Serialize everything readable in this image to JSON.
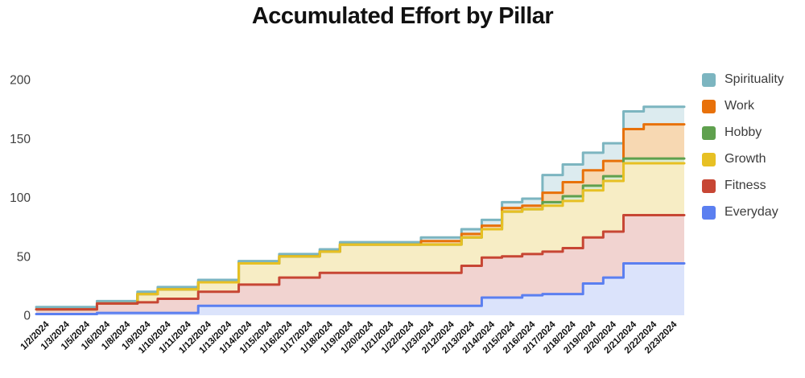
{
  "header": {
    "title": "Accumulated Effort by Pillar"
  },
  "chart_data": {
    "type": "area",
    "variant": "stepped-stacked-area",
    "title": "Accumulated Effort by Pillar",
    "xlabel": "",
    "ylabel": "",
    "ylim": [
      0,
      200
    ],
    "y_ticks": [
      0,
      50,
      100,
      150,
      200
    ],
    "grid": false,
    "legend_position": "right",
    "legend_order_top_to_bottom": [
      "Spirituality",
      "Work",
      "Hobby",
      "Growth",
      "Fitness",
      "Everyday"
    ],
    "categories": [
      "1/2/2024",
      "1/3/2024",
      "1/5/2024",
      "1/6/2024",
      "1/8/2024",
      "1/9/2024",
      "1/10/2024",
      "1/11/2024",
      "1/12/2024",
      "1/13/2024",
      "1/14/2024",
      "1/15/2024",
      "1/16/2024",
      "1/17/2024",
      "1/18/2024",
      "1/19/2024",
      "1/20/2024",
      "1/21/2024",
      "1/22/2024",
      "1/23/2024",
      "2/12/2024",
      "2/13/2024",
      "2/14/2024",
      "2/15/2024",
      "2/16/2024",
      "2/17/2024",
      "2/18/2024",
      "2/19/2024",
      "2/20/2024",
      "2/21/2024",
      "2/22/2024",
      "2/23/2024"
    ],
    "series": [
      {
        "name": "Everyday",
        "color": "#5b7ff0",
        "fill": "#dbe3fb",
        "values": [
          1,
          1,
          1,
          2,
          2,
          2,
          2,
          2,
          8,
          8,
          8,
          8,
          8,
          8,
          8,
          8,
          8,
          8,
          8,
          8,
          8,
          8,
          15,
          15,
          17,
          18,
          18,
          27,
          32,
          44,
          44,
          44
        ]
      },
      {
        "name": "Fitness",
        "color": "#c74634",
        "fill": "#f1d3d0",
        "values": [
          4,
          4,
          4,
          8,
          8,
          9,
          12,
          12,
          12,
          12,
          18,
          18,
          24,
          24,
          28,
          28,
          28,
          28,
          28,
          28,
          28,
          34,
          34,
          35,
          35,
          36,
          39,
          39,
          39,
          41,
          41,
          41
        ]
      },
      {
        "name": "Growth",
        "color": "#e7c023",
        "fill": "#f7edc5",
        "values": [
          0,
          0,
          0,
          0,
          0,
          7,
          8,
          8,
          8,
          8,
          18,
          18,
          18,
          18,
          18,
          24,
          24,
          24,
          24,
          24,
          24,
          24,
          24,
          38,
          38,
          39,
          40,
          40,
          43,
          44,
          44,
          44
        ]
      },
      {
        "name": "Hobby",
        "color": "#5fa04e",
        "fill": "#dcebd2",
        "values": [
          0,
          0,
          0,
          0,
          0,
          0,
          0,
          0,
          0,
          0,
          0,
          0,
          0,
          0,
          0,
          0,
          0,
          0,
          0,
          0,
          0,
          0,
          0,
          0,
          0,
          3,
          4,
          4,
          4,
          4,
          4,
          4
        ]
      },
      {
        "name": "Work",
        "color": "#e8710a",
        "fill": "#f7d8b2",
        "values": [
          0,
          0,
          0,
          0,
          0,
          0,
          0,
          0,
          0,
          0,
          0,
          0,
          0,
          0,
          0,
          0,
          0,
          0,
          0,
          3,
          3,
          3,
          3,
          3,
          3,
          8,
          12,
          13,
          13,
          25,
          29,
          29
        ]
      },
      {
        "name": "Spirituality",
        "color": "#7cb5c0",
        "fill": "#dcebef",
        "values": [
          2,
          2,
          2,
          2,
          2,
          2,
          2,
          2,
          2,
          2,
          2,
          2,
          2,
          2,
          2,
          2,
          2,
          2,
          2,
          3,
          3,
          4,
          5,
          5,
          6,
          15,
          15,
          15,
          15,
          15,
          15,
          15
        ]
      }
    ]
  }
}
